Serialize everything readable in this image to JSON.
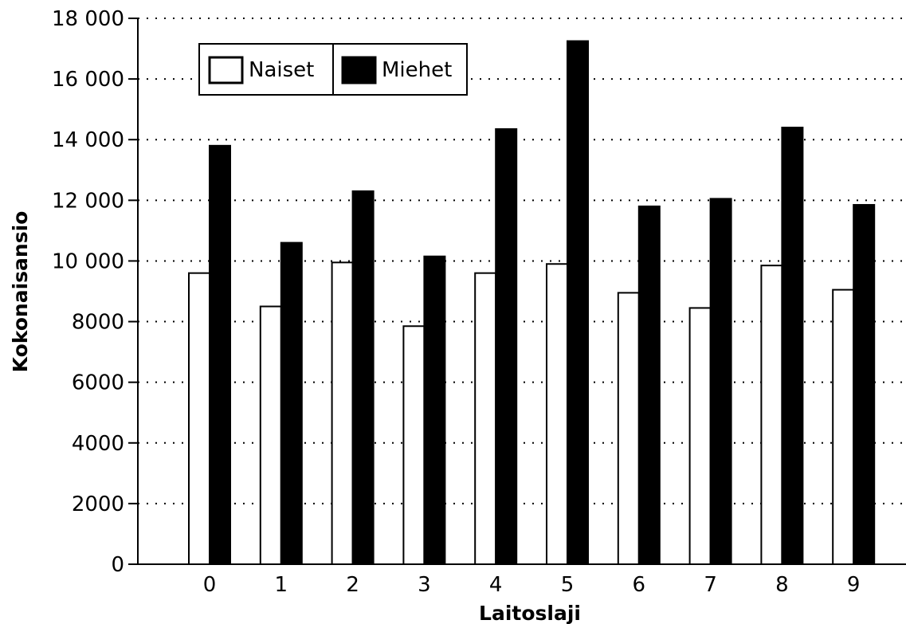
{
  "chart_data": {
    "type": "bar",
    "title": "",
    "xlabel": "Laitoslaji",
    "ylabel": "Kokonaisansio",
    "categories": [
      "0",
      "1",
      "2",
      "3",
      "4",
      "5",
      "6",
      "7",
      "8",
      "9"
    ],
    "series": [
      {
        "name": "Naiset",
        "color": "#ffffff",
        "values": [
          9600,
          8500,
          9950,
          7850,
          9600,
          9900,
          8950,
          8450,
          9850,
          9050
        ]
      },
      {
        "name": "Miehet",
        "color": "#000000",
        "values": [
          13800,
          10600,
          12300,
          10150,
          14350,
          17250,
          11800,
          12050,
          14400,
          11850
        ]
      }
    ],
    "ylim": [
      0,
      18000
    ],
    "yticks": [
      {
        "value": 0,
        "label": "0"
      },
      {
        "value": 2000,
        "label": "2000"
      },
      {
        "value": 4000,
        "label": "4000"
      },
      {
        "value": 6000,
        "label": "6000"
      },
      {
        "value": 8000,
        "label": "8000"
      },
      {
        "value": 10000,
        "label": "10 000"
      },
      {
        "value": 12000,
        "label": "12 000"
      },
      {
        "value": 14000,
        "label": "14 000"
      },
      {
        "value": 16000,
        "label": "16 000"
      },
      {
        "value": 18000,
        "label": "18 000"
      }
    ],
    "grid": true,
    "legend_position": "top-left"
  }
}
